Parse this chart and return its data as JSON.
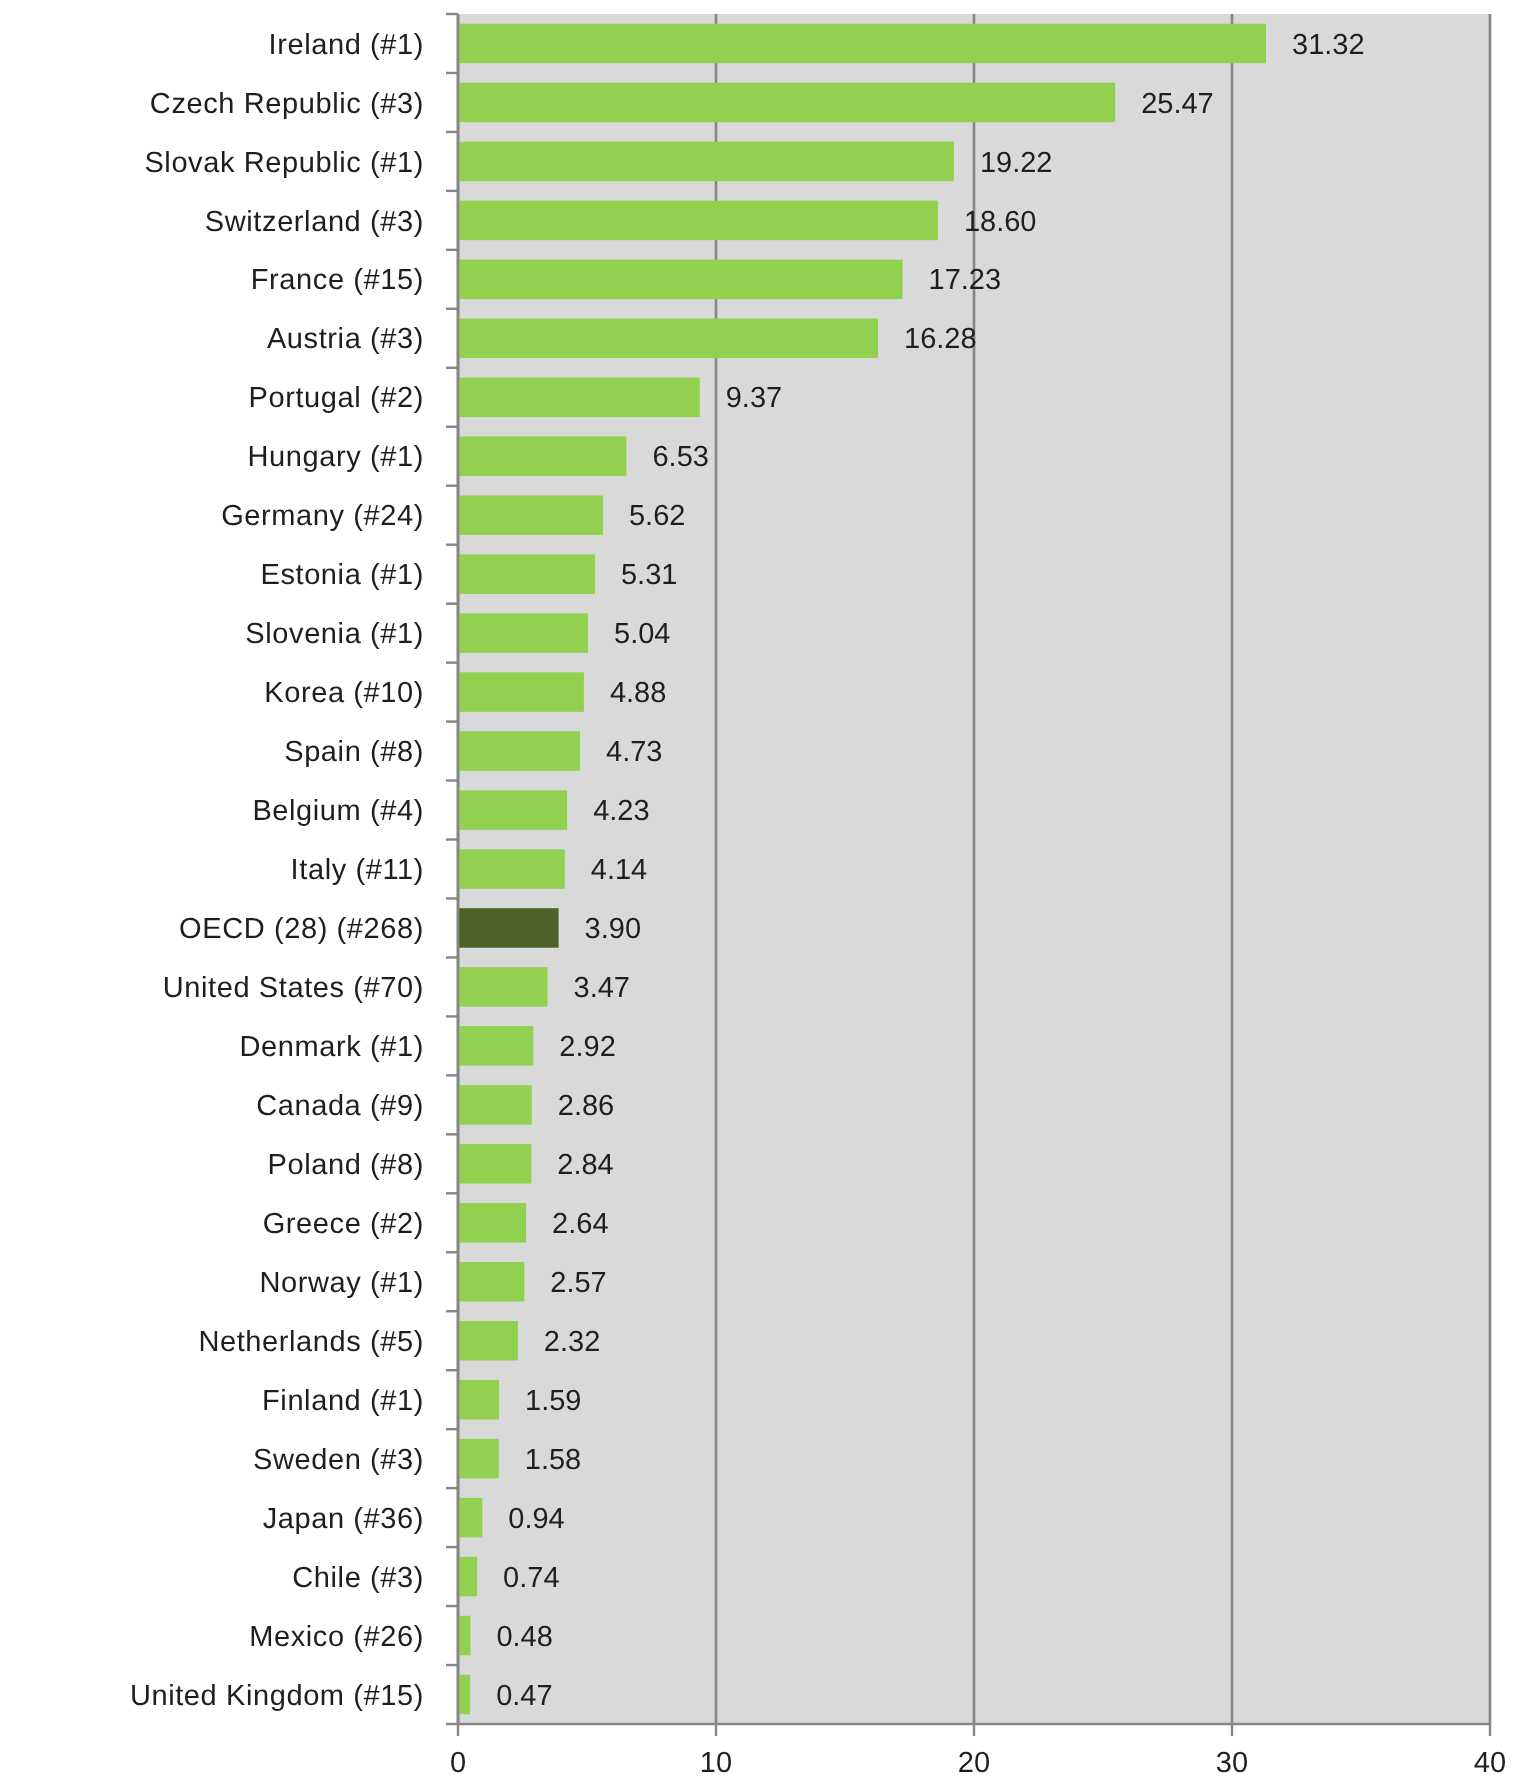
{
  "chart_data": {
    "type": "bar",
    "orientation": "horizontal",
    "categories": [
      "Ireland (#1)",
      "Czech Republic (#3)",
      "Slovak Republic (#1)",
      "Switzerland (#3)",
      "France (#15)",
      "Austria (#3)",
      "Portugal (#2)",
      "Hungary (#1)",
      "Germany (#24)",
      "Estonia (#1)",
      "Slovenia (#1)",
      "Korea (#10)",
      "Spain (#8)",
      "Belgium (#4)",
      "Italy (#11)",
      "OECD (28) (#268)",
      "United States (#70)",
      "Denmark (#1)",
      "Canada (#9)",
      "Poland (#8)",
      "Greece (#2)",
      "Norway (#1)",
      "Netherlands (#5)",
      "Finland (#1)",
      "Sweden (#3)",
      "Japan (#36)",
      "Chile (#3)",
      "Mexico (#26)",
      "United Kingdom (#15)"
    ],
    "values": [
      31.32,
      25.47,
      19.22,
      18.6,
      17.23,
      16.28,
      9.37,
      6.53,
      5.62,
      5.31,
      5.04,
      4.88,
      4.73,
      4.23,
      4.14,
      3.9,
      3.47,
      2.92,
      2.86,
      2.84,
      2.64,
      2.57,
      2.32,
      1.59,
      1.58,
      0.94,
      0.74,
      0.48,
      0.47
    ],
    "value_labels": [
      "31.32",
      "25.47",
      "19.22",
      "18.60",
      "17.23",
      "16.28",
      "9.37",
      "6.53",
      "5.62",
      "5.31",
      "5.04",
      "4.88",
      "4.73",
      "4.23",
      "4.14",
      "3.90",
      "3.47",
      "2.92",
      "2.86",
      "2.84",
      "2.64",
      "2.57",
      "2.32",
      "1.59",
      "1.58",
      "0.94",
      "0.74",
      "0.48",
      "0.47"
    ],
    "colors": [
      "#92d050",
      "#92d050",
      "#92d050",
      "#92d050",
      "#92d050",
      "#92d050",
      "#92d050",
      "#92d050",
      "#92d050",
      "#92d050",
      "#92d050",
      "#92d050",
      "#92d050",
      "#92d050",
      "#92d050",
      "#4f6228",
      "#92d050",
      "#92d050",
      "#92d050",
      "#92d050",
      "#92d050",
      "#92d050",
      "#92d050",
      "#92d050",
      "#92d050",
      "#92d050",
      "#92d050",
      "#92d050",
      "#92d050"
    ],
    "xlim": [
      0,
      40
    ],
    "xticks": [
      0,
      10,
      20,
      30,
      40
    ],
    "grid": "x"
  }
}
